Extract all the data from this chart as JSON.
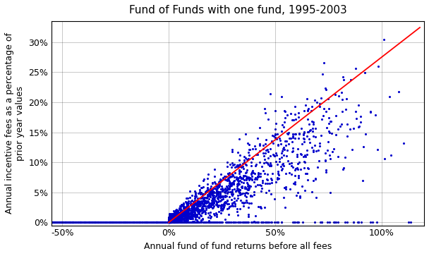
{
  "title": "Fund of Funds with one fund, 1995-2003",
  "xlabel": "Annual fund of fund returns before all fees",
  "ylabel": "Annual incentive fees as a percentage of\nprior year values",
  "xlim": [
    -0.55,
    1.2
  ],
  "ylim": [
    -0.005,
    0.335
  ],
  "xticks": [
    -0.5,
    0.0,
    0.5,
    1.0
  ],
  "xtick_labels": [
    "-50%",
    "0%",
    "50%",
    "100%"
  ],
  "yticks": [
    0.0,
    0.05,
    0.1,
    0.15,
    0.2,
    0.25,
    0.3
  ],
  "ytick_labels": [
    "0%",
    "5%",
    "10%",
    "15%",
    "20%",
    "25%",
    "30%"
  ],
  "dot_color": "#0000CC",
  "dot_size": 5,
  "line_color": "#FF0000",
  "line_x_start": 0.0,
  "line_x_end": 1.18,
  "line_slope": 0.275,
  "incentive_rate": 0.2,
  "seed": 42,
  "n_negative": 900,
  "n_positive": 1600,
  "n_zero_positive": 200,
  "background_color": "#ffffff",
  "title_fontsize": 11,
  "label_fontsize": 9,
  "grid_color": "#000000",
  "grid_alpha": 0.3,
  "grid_linewidth": 0.5
}
